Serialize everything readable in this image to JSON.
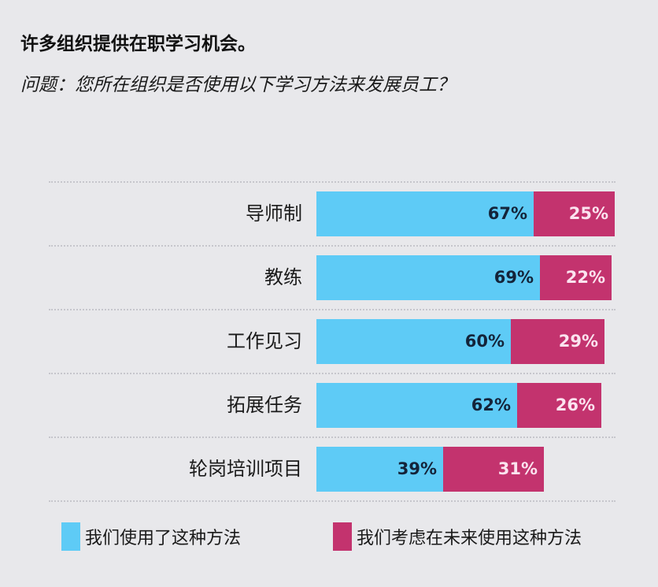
{
  "header": {
    "title": "许多组织提供在职学习机会。",
    "subtitle": "问题：您所在组织是否使用以下学习方法来发展员工？"
  },
  "colors": {
    "used": "#5ecbf6",
    "future": "#c3336e",
    "background": "#e8e8eb"
  },
  "rows": [
    {
      "label": "导师制",
      "used": "67%",
      "future": "25%"
    },
    {
      "label": "教练",
      "used": "69%",
      "future": "22%"
    },
    {
      "label": "工作见习",
      "used": "60%",
      "future": "29%"
    },
    {
      "label": "拓展任务",
      "used": "62%",
      "future": "26%"
    },
    {
      "label": "轮岗培训项目",
      "used": "39%",
      "future": "31%"
    }
  ],
  "legend": {
    "used": "我们使用了这种方法",
    "future": "我们考虑在未来使用这种方法"
  },
  "chart_data": {
    "type": "bar",
    "orientation": "horizontal",
    "stacked": true,
    "title": "许多组织提供在职学习机会。",
    "subtitle": "问题：您所在组织是否使用以下学习方法来发展员工？",
    "categories": [
      "导师制",
      "教练",
      "工作见习",
      "拓展任务",
      "轮岗培训项目"
    ],
    "series": [
      {
        "name": "我们使用了这种方法",
        "color": "#5ecbf6",
        "values": [
          67,
          69,
          60,
          62,
          39
        ]
      },
      {
        "name": "我们考虑在未来使用这种方法",
        "color": "#c3336e",
        "values": [
          25,
          22,
          29,
          26,
          31
        ]
      }
    ],
    "xlabel": "",
    "ylabel": "",
    "unit": "%",
    "xlim": [
      0,
      100
    ],
    "grid": "dotted row separators",
    "legend_position": "bottom"
  }
}
